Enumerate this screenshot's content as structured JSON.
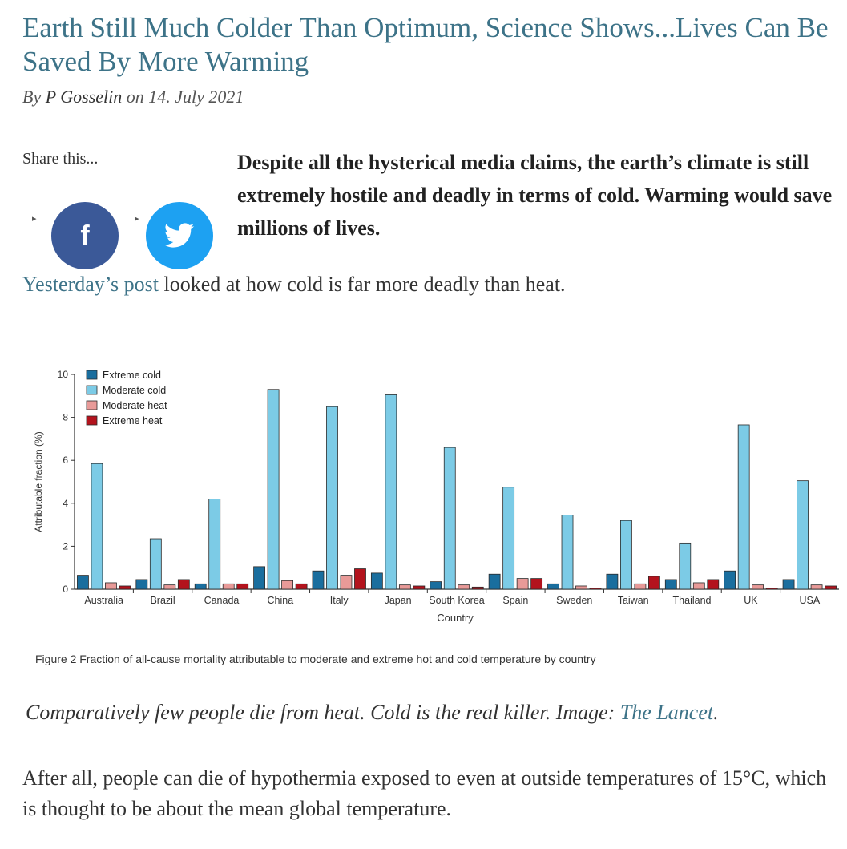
{
  "article": {
    "title": "Earth Still Much Colder Than Optimum, Science Shows...Lives Can Be Saved By More Warming",
    "byline_prefix": "By",
    "author": "P Gosselin",
    "byline_mid": "on",
    "date": "14. July 2021",
    "share_label": "Share this...",
    "facebook_glyph": "f",
    "lead": "Despite all the hysterical media claims, the earth’s climate is still extremely hostile and deadly in terms of cold. Warming would save millions of lives.",
    "para1_link": "Yesterday’s post",
    "para1_rest": " looked at how cold is far more deadly than heat.",
    "figure_caption": "Figure 2 Fraction of all-cause mortality attributable to moderate and extreme hot and cold temperature by country",
    "image_caption_text": "Comparatively few people die from heat. Cold is the real killer. Image: ",
    "image_caption_link": "The Lancet",
    "image_caption_end": ".",
    "para2": "After all, people can die of hypothermia exposed to even at outside temperatures of 15°C, which is thought to be about the mean global temperature."
  },
  "icons": {
    "facebook": "facebook-icon",
    "twitter": "twitter-icon"
  },
  "colors": {
    "link": "#3d7388",
    "facebook": "#3b5998",
    "twitter": "#1da1f2"
  },
  "chart_data": {
    "type": "bar",
    "xlabel": "Country",
    "ylabel": "Attributable fraction (%)",
    "ylim": [
      0,
      10
    ],
    "yticks": [
      0,
      2,
      4,
      6,
      8,
      10
    ],
    "legend_position": "top-left",
    "categories": [
      "Australia",
      "Brazil",
      "Canada",
      "China",
      "Italy",
      "Japan",
      "South Korea",
      "Spain",
      "Sweden",
      "Taiwan",
      "Thailand",
      "UK",
      "USA"
    ],
    "series": [
      {
        "name": "Extreme cold",
        "color": "#1a6e9e",
        "values": [
          0.65,
          0.45,
          0.25,
          1.05,
          0.85,
          0.75,
          0.35,
          0.7,
          0.25,
          0.7,
          0.45,
          0.85,
          0.45
        ]
      },
      {
        "name": "Moderate cold",
        "color": "#7ccbe6",
        "values": [
          5.85,
          2.35,
          4.2,
          9.3,
          8.5,
          9.05,
          6.6,
          4.75,
          3.45,
          3.2,
          2.15,
          7.65,
          5.05
        ]
      },
      {
        "name": "Moderate heat",
        "color": "#e89a98",
        "values": [
          0.3,
          0.2,
          0.25,
          0.4,
          0.65,
          0.2,
          0.2,
          0.5,
          0.15,
          0.25,
          0.3,
          0.2,
          0.2
        ]
      },
      {
        "name": "Extreme heat",
        "color": "#b3131d",
        "values": [
          0.15,
          0.45,
          0.25,
          0.25,
          0.95,
          0.15,
          0.1,
          0.5,
          0.05,
          0.6,
          0.45,
          0.05,
          0.15
        ]
      }
    ]
  }
}
